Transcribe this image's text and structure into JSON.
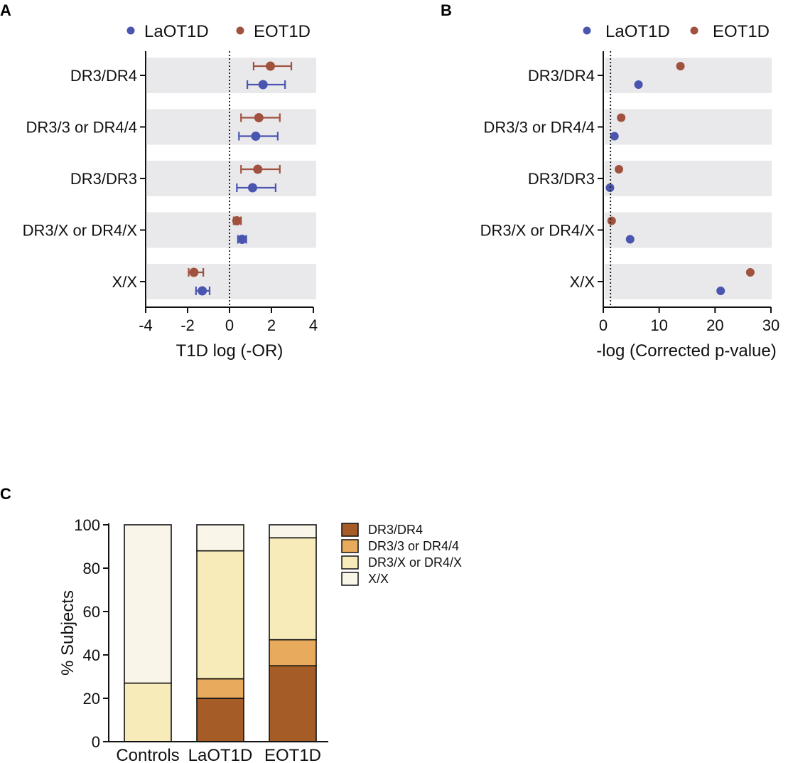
{
  "colors": {
    "laot1d": "#4a55b0",
    "eot1d": "#a0523f",
    "band": "#e9e9ec",
    "dr3dr4": "#a65c27",
    "dr33": "#e8aa5c",
    "dr3x": "#f7ebb9",
    "xx": "#f9f6e9"
  },
  "panels": {
    "a": "A",
    "b": "B",
    "c": "C"
  },
  "chart_data": [
    {
      "id": "A",
      "type": "scatter",
      "title": "",
      "xlabel": "T1D log (-OR)",
      "xlim": [
        -4,
        4
      ],
      "xticks": [
        "-4",
        "-2",
        "0",
        "2",
        "4"
      ],
      "reference_line": 0,
      "legend": [
        "LaOT1D",
        "EOT1D"
      ],
      "categories": [
        "DR3/DR4",
        "DR3/3 or DR4/4",
        "DR3/DR3",
        "DR3/X or DR4/X",
        "X/X"
      ],
      "series": [
        {
          "name": "LaOT1D",
          "values": [
            1.6,
            1.25,
            1.1,
            0.6,
            -1.3
          ],
          "ci_low": [
            0.85,
            0.45,
            0.35,
            0.4,
            -1.6
          ],
          "ci_high": [
            2.65,
            2.3,
            2.2,
            0.8,
            -0.95
          ]
        },
        {
          "name": "EOT1D",
          "values": [
            1.95,
            1.4,
            1.35,
            0.35,
            -1.7
          ],
          "ci_low": [
            1.15,
            0.55,
            0.55,
            0.2,
            -1.95
          ],
          "ci_high": [
            2.95,
            2.4,
            2.4,
            0.55,
            -1.25
          ]
        }
      ]
    },
    {
      "id": "B",
      "type": "scatter",
      "title": "",
      "xlabel": "-log (Corrected p-value)",
      "xlim": [
        0,
        30
      ],
      "xticks": [
        "0",
        "10",
        "20",
        "30"
      ],
      "reference_line": 1.3,
      "legend": [
        "LaOT1D",
        "EOT1D"
      ],
      "categories": [
        "DR3/DR4",
        "DR3/3 or DR4/4",
        "DR3/DR3",
        "DR3/X or DR4/X",
        "X/X"
      ],
      "series": [
        {
          "name": "LaOT1D",
          "values": [
            6.3,
            2.0,
            1.2,
            4.8,
            21.0
          ]
        },
        {
          "name": "EOT1D",
          "values": [
            13.8,
            3.2,
            2.8,
            1.5,
            26.3
          ]
        }
      ]
    },
    {
      "id": "C",
      "type": "bar",
      "stacked": true,
      "title": "",
      "xlabel": "",
      "ylabel": "% Subjects",
      "ylim": [
        0,
        100
      ],
      "yticks": [
        "0",
        "20",
        "40",
        "60",
        "80",
        "100"
      ],
      "categories": [
        "Controls",
        "LaOT1D",
        "EOT1D"
      ],
      "series": [
        {
          "name": "DR3/DR4",
          "values": [
            0,
            20,
            35
          ]
        },
        {
          "name": "DR3/3 or DR4/4",
          "values": [
            0,
            9,
            12
          ]
        },
        {
          "name": "DR3/X or DR4/X",
          "values": [
            27,
            59,
            47
          ]
        },
        {
          "name": "X/X",
          "values": [
            73,
            12,
            6
          ]
        }
      ]
    }
  ]
}
